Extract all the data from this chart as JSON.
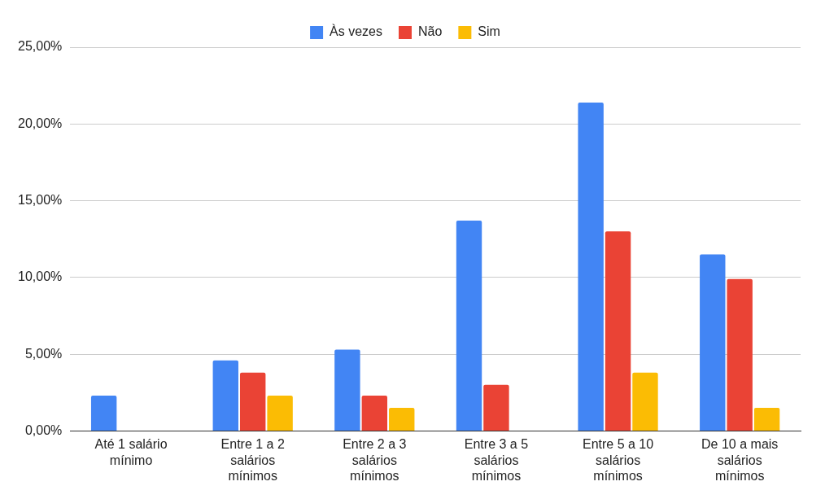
{
  "chart_data": {
    "type": "bar",
    "categories": [
      "Até 1 salário mínimo",
      "Entre 1 a 2 salários mínimos",
      "Entre 2 a 3 salários mínimos",
      "Entre 3 a 5 salários mínimos",
      "Entre 5 a 10 salários mínimos",
      "De 10 a mais salários mínimos"
    ],
    "series": [
      {
        "name": "Às vezes",
        "color": "#4285f4",
        "values": [
          2.3,
          4.6,
          5.3,
          13.7,
          21.4,
          11.5
        ]
      },
      {
        "name": "Não",
        "color": "#ea4335",
        "values": [
          0,
          3.8,
          2.3,
          3.0,
          13.0,
          9.9
        ]
      },
      {
        "name": "Sim",
        "color": "#fbbc04",
        "values": [
          0,
          2.3,
          1.5,
          0,
          3.8,
          1.5
        ]
      }
    ],
    "ylim": [
      0,
      25
    ],
    "yticks": [
      {
        "value": 0,
        "label": "0,00%"
      },
      {
        "value": 5,
        "label": "5,00%"
      },
      {
        "value": 10,
        "label": "10,00%"
      },
      {
        "value": 15,
        "label": "15,00%"
      },
      {
        "value": 20,
        "label": "20,00%"
      },
      {
        "value": 25,
        "label": "25,00%"
      }
    ],
    "grid": "y",
    "legend": "top"
  }
}
